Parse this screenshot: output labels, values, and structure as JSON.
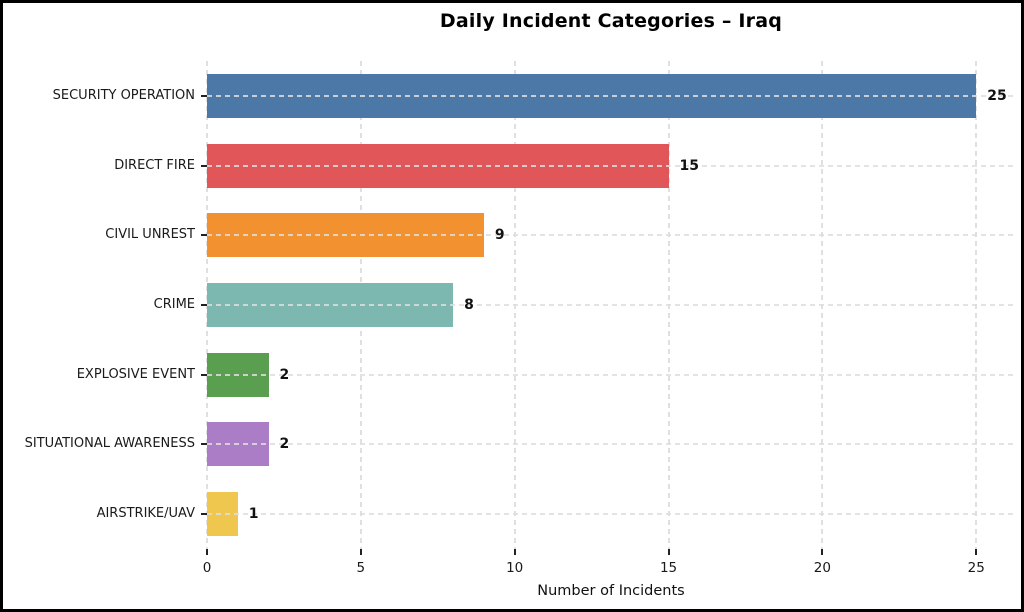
{
  "figure": {
    "border_color": "#000000",
    "background_color": "#ffffff"
  },
  "chart_data": {
    "type": "bar",
    "orientation": "horizontal",
    "title": "Daily Incident Categories – Iraq",
    "xlabel": "Number of Incidents",
    "ylabel": "",
    "categories": [
      "SECURITY OPERATION",
      "DIRECT FIRE",
      "CIVIL UNREST",
      "CRIME",
      "EXPLOSIVE EVENT",
      "SITUATIONAL AWARENESS",
      "AIRSTRIKE/UAV"
    ],
    "values": [
      25,
      15,
      9,
      8,
      2,
      2,
      1
    ],
    "value_labels": [
      "25",
      "15",
      "9",
      "8",
      "2",
      "2",
      "1"
    ],
    "bar_colors": [
      "#4C78A8",
      "#E15759",
      "#F2912F",
      "#7CB8B0",
      "#5A9E50",
      "#AB7DC6",
      "#EFC74F"
    ],
    "xlim": [
      0,
      26.26
    ],
    "xticks": [
      0,
      5,
      10,
      15,
      20,
      25
    ],
    "xtick_labels": [
      "0",
      "5",
      "10",
      "15",
      "20",
      "25"
    ],
    "grid": "dashed",
    "grid_color": "#e0e0e0",
    "legend": "none"
  }
}
